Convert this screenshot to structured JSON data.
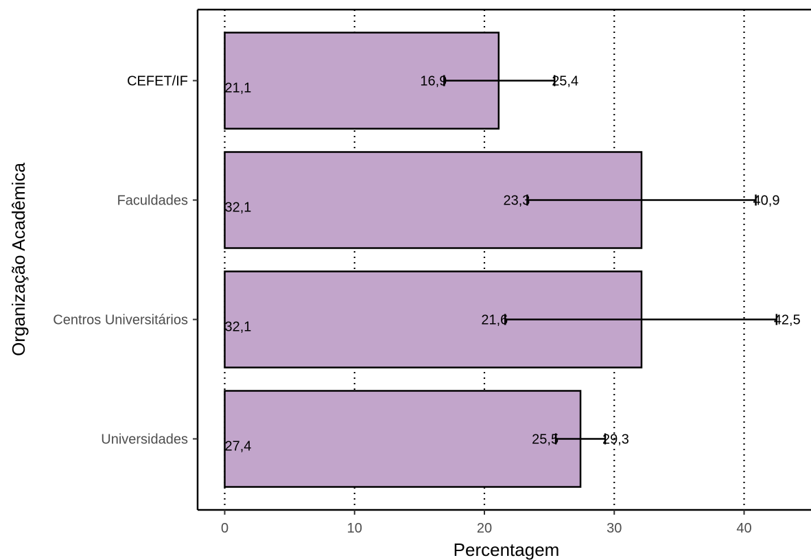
{
  "chart_data": {
    "type": "bar",
    "orientation": "horizontal",
    "categories": [
      "CEFET/IF",
      "Faculdades",
      "Centros Universitários",
      "Universidades"
    ],
    "values": [
      21.1,
      32.1,
      32.1,
      27.4
    ],
    "value_labels": [
      "21,1",
      "32,1",
      "32,1",
      "27,4"
    ],
    "error_low": [
      16.9,
      23.3,
      21.6,
      25.5
    ],
    "error_high": [
      25.4,
      40.9,
      42.5,
      29.3
    ],
    "error_low_labels": [
      "16,9",
      "23,3",
      "21,6",
      "25,5"
    ],
    "error_high_labels": [
      "25,4",
      "40,9",
      "42,5",
      "29,3"
    ],
    "xlabel": "Percentagem",
    "ylabel": "Organização Acadêmica",
    "xlim": [
      -2.2,
      45.3
    ],
    "xticks": [
      0,
      10,
      20,
      30,
      40
    ],
    "xtick_labels": [
      "0",
      "10",
      "20",
      "30",
      "40"
    ],
    "grid": "vertical dotted",
    "legend": "none",
    "colors": {
      "bar_fill": "#c2a5cb",
      "bar_stroke": "#000000",
      "grid": "#000000",
      "tick_text": "#4d4d4d"
    }
  }
}
